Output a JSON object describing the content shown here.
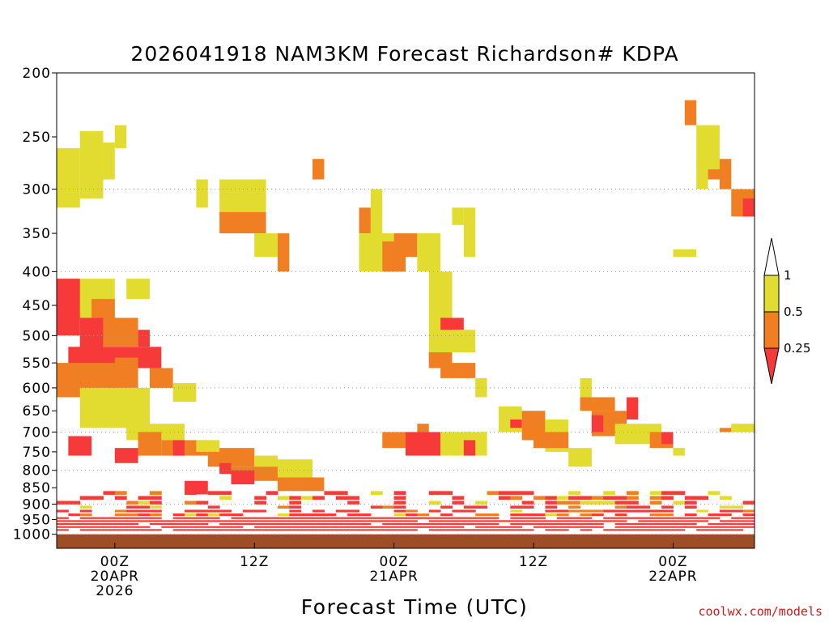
{
  "chart_data": {
    "type": "heatmap",
    "title": "2026041918 NAM3KM Forecast Richardson# KDPA",
    "xlabel": "Forecast Time (UTC)",
    "ylabel": "",
    "y_scale": "log-pressure",
    "ylim_hpa": [
      1000,
      200
    ],
    "y_ticks": [
      200,
      250,
      300,
      350,
      400,
      450,
      500,
      550,
      600,
      650,
      700,
      750,
      800,
      850,
      900,
      950,
      1000
    ],
    "y_gridlines": [
      300,
      400,
      500,
      600,
      700,
      800,
      900,
      1000
    ],
    "xlim_hours": [
      -5,
      55
    ],
    "x_ticks": [
      {
        "hour": 0,
        "lines": [
          "00Z",
          "20APR",
          "2026"
        ]
      },
      {
        "hour": 12,
        "lines": [
          "12Z"
        ]
      },
      {
        "hour": 24,
        "lines": [
          "00Z",
          "21APR"
        ]
      },
      {
        "hour": 36,
        "lines": [
          "12Z"
        ]
      },
      {
        "hour": 48,
        "lines": [
          "00Z",
          "22APR"
        ]
      }
    ],
    "legend": {
      "placement": "right",
      "labels": [
        "1",
        "0.5",
        "0.25"
      ],
      "bins": [
        {
          "range": "0.5 - 1",
          "color": "#e1dc2f"
        },
        {
          "range": "0.25 - 0.5",
          "color": "#ef7f22"
        },
        {
          "range": "< 0.25",
          "color": "#f63a3a"
        }
      ]
    },
    "colors": {
      "yellow": "#e1dc2f",
      "orange": "#ef7f22",
      "red": "#f63a3a",
      "ground": "#9e4e27",
      "grid": "#999999"
    },
    "cells": [
      {
        "t0": -5,
        "t1": -3,
        "p0": 260,
        "p1": 320,
        "c": "yellow"
      },
      {
        "t0": -3,
        "t1": -1,
        "p0": 245,
        "p1": 310,
        "c": "yellow"
      },
      {
        "t0": -1,
        "t1": 0,
        "p0": 255,
        "p1": 290,
        "c": "yellow"
      },
      {
        "t0": 0,
        "t1": 1,
        "p0": 240,
        "p1": 260,
        "c": "yellow"
      },
      {
        "t0": -5,
        "t1": 0,
        "p0": 410,
        "p1": 470,
        "c": "yellow"
      },
      {
        "t0": 1,
        "t1": 3,
        "p0": 410,
        "p1": 440,
        "c": "yellow"
      },
      {
        "t0": -5,
        "t1": -3,
        "p0": 410,
        "p1": 500,
        "c": "red"
      },
      {
        "t0": -3,
        "t1": -1,
        "p0": 470,
        "p1": 530,
        "c": "red"
      },
      {
        "t0": -4,
        "t1": 4,
        "p0": 520,
        "p1": 560,
        "c": "red"
      },
      {
        "t0": 2,
        "t1": 3,
        "p0": 490,
        "p1": 520,
        "c": "red"
      },
      {
        "t0": -5,
        "t1": 1,
        "p0": 560,
        "p1": 620,
        "c": "orange"
      },
      {
        "t0": -2,
        "t1": 0,
        "p0": 440,
        "p1": 470,
        "c": "orange"
      },
      {
        "t0": -1,
        "t1": 2,
        "p0": 470,
        "p1": 520,
        "c": "orange"
      },
      {
        "t0": -5,
        "t1": 0,
        "p0": 550,
        "p1": 580,
        "c": "orange"
      },
      {
        "t0": 0,
        "t1": 2,
        "p0": 540,
        "p1": 600,
        "c": "orange"
      },
      {
        "t0": 3,
        "t1": 5,
        "p0": 560,
        "p1": 600,
        "c": "orange"
      },
      {
        "t0": -3,
        "t1": 3,
        "p0": 600,
        "p1": 690,
        "c": "yellow"
      },
      {
        "t0": 1,
        "t1": 3,
        "p0": 640,
        "p1": 720,
        "c": "yellow"
      },
      {
        "t0": 3,
        "t1": 6,
        "p0": 680,
        "p1": 720,
        "c": "yellow"
      },
      {
        "t0": 5,
        "t1": 7,
        "p0": 590,
        "p1": 630,
        "c": "yellow"
      },
      {
        "t0": 2,
        "t1": 4,
        "p0": 700,
        "p1": 760,
        "c": "orange"
      },
      {
        "t0": 4,
        "t1": 8,
        "p0": 720,
        "p1": 760,
        "c": "orange"
      },
      {
        "t0": 8,
        "t1": 12,
        "p0": 740,
        "p1": 790,
        "c": "orange"
      },
      {
        "t0": 7,
        "t1": 9,
        "p0": 720,
        "p1": 750,
        "c": "yellow"
      },
      {
        "t0": 12,
        "t1": 14,
        "p0": 760,
        "p1": 800,
        "c": "yellow"
      },
      {
        "t0": 14,
        "t1": 17,
        "p0": 770,
        "p1": 830,
        "c": "yellow"
      },
      {
        "t0": 10,
        "t1": 14,
        "p0": 790,
        "p1": 830,
        "c": "orange"
      },
      {
        "t0": 14,
        "t1": 18,
        "p0": 820,
        "p1": 860,
        "c": "orange"
      },
      {
        "t0": -4,
        "t1": -2,
        "p0": 710,
        "p1": 760,
        "c": "red"
      },
      {
        "t0": 0,
        "t1": 2,
        "p0": 740,
        "p1": 780,
        "c": "red"
      },
      {
        "t0": 5,
        "t1": 6,
        "p0": 720,
        "p1": 760,
        "c": "red"
      },
      {
        "t0": 9,
        "t1": 10,
        "p0": 780,
        "p1": 810,
        "c": "red"
      },
      {
        "t0": 6,
        "t1": 8,
        "p0": 830,
        "p1": 870,
        "c": "red"
      },
      {
        "t0": 10,
        "t1": 12,
        "p0": 800,
        "p1": 840,
        "c": "red"
      },
      {
        "t0": 9,
        "t1": 13,
        "p0": 290,
        "p1": 330,
        "c": "yellow"
      },
      {
        "t0": 9,
        "t1": 13,
        "p0": 325,
        "p1": 350,
        "c": "orange"
      },
      {
        "t0": 12,
        "t1": 14,
        "p0": 350,
        "p1": 380,
        "c": "yellow"
      },
      {
        "t0": 14,
        "t1": 15,
        "p0": 350,
        "p1": 400,
        "c": "orange"
      },
      {
        "t0": 7,
        "t1": 8,
        "p0": 290,
        "p1": 320,
        "c": "yellow"
      },
      {
        "t0": 17,
        "t1": 18,
        "p0": 270,
        "p1": 290,
        "c": "orange"
      },
      {
        "t0": 21,
        "t1": 22,
        "p0": 320,
        "p1": 350,
        "c": "orange"
      },
      {
        "t0": 22,
        "t1": 23,
        "p0": 300,
        "p1": 360,
        "c": "yellow"
      },
      {
        "t0": 21,
        "t1": 24,
        "p0": 350,
        "p1": 400,
        "c": "yellow"
      },
      {
        "t0": 23,
        "t1": 25,
        "p0": 360,
        "p1": 400,
        "c": "orange"
      },
      {
        "t0": 24,
        "t1": 26,
        "p0": 350,
        "p1": 380,
        "c": "orange"
      },
      {
        "t0": 26,
        "t1": 28,
        "p0": 350,
        "p1": 400,
        "c": "yellow"
      },
      {
        "t0": 30,
        "t1": 31,
        "p0": 320,
        "p1": 380,
        "c": "yellow"
      },
      {
        "t0": 29,
        "t1": 30,
        "p0": 320,
        "p1": 340,
        "c": "yellow"
      },
      {
        "t0": 27,
        "t1": 29,
        "p0": 400,
        "p1": 550,
        "c": "yellow"
      },
      {
        "t0": 27,
        "t1": 29,
        "p0": 530,
        "p1": 560,
        "c": "orange"
      },
      {
        "t0": 28,
        "t1": 30,
        "p0": 470,
        "p1": 490,
        "c": "red"
      },
      {
        "t0": 28,
        "t1": 31,
        "p0": 550,
        "p1": 580,
        "c": "orange"
      },
      {
        "t0": 29,
        "t1": 31,
        "p0": 490,
        "p1": 530,
        "c": "yellow"
      },
      {
        "t0": 31,
        "t1": 32,
        "p0": 580,
        "p1": 620,
        "c": "yellow"
      },
      {
        "t0": 26,
        "t1": 27,
        "p0": 680,
        "p1": 740,
        "c": "orange"
      },
      {
        "t0": 25,
        "t1": 28,
        "p0": 700,
        "p1": 760,
        "c": "red"
      },
      {
        "t0": 23,
        "t1": 25,
        "p0": 700,
        "p1": 740,
        "c": "orange"
      },
      {
        "t0": 28,
        "t1": 32,
        "p0": 700,
        "p1": 760,
        "c": "yellow"
      },
      {
        "t0": 30,
        "t1": 31,
        "p0": 720,
        "p1": 760,
        "c": "red"
      },
      {
        "t0": 33,
        "t1": 35,
        "p0": 640,
        "p1": 700,
        "c": "yellow"
      },
      {
        "t0": 35,
        "t1": 37,
        "p0": 650,
        "p1": 720,
        "c": "orange"
      },
      {
        "t0": 37,
        "t1": 39,
        "p0": 670,
        "p1": 750,
        "c": "yellow"
      },
      {
        "t0": 36,
        "t1": 39,
        "p0": 700,
        "p1": 740,
        "c": "orange"
      },
      {
        "t0": 34,
        "t1": 35,
        "p0": 670,
        "p1": 690,
        "c": "red"
      },
      {
        "t0": 39,
        "t1": 41,
        "p0": 740,
        "p1": 790,
        "c": "yellow"
      },
      {
        "t0": 40,
        "t1": 43,
        "p0": 620,
        "p1": 650,
        "c": "orange"
      },
      {
        "t0": 41,
        "t1": 44,
        "p0": 650,
        "p1": 710,
        "c": "orange"
      },
      {
        "t0": 40,
        "t1": 41,
        "p0": 580,
        "p1": 620,
        "c": "yellow"
      },
      {
        "t0": 41,
        "t1": 42,
        "p0": 660,
        "p1": 700,
        "c": "red"
      },
      {
        "t0": 43,
        "t1": 47,
        "p0": 680,
        "p1": 730,
        "c": "yellow"
      },
      {
        "t0": 44,
        "t1": 45,
        "p0": 620,
        "p1": 670,
        "c": "red"
      },
      {
        "t0": 46,
        "t1": 48,
        "p0": 700,
        "p1": 740,
        "c": "orange"
      },
      {
        "t0": 47,
        "t1": 48,
        "p0": 700,
        "p1": 730,
        "c": "red"
      },
      {
        "t0": 48,
        "t1": 49,
        "p0": 740,
        "p1": 760,
        "c": "yellow"
      },
      {
        "t0": 48,
        "t1": 50,
        "p0": 370,
        "p1": 380,
        "c": "yellow"
      },
      {
        "t0": 50,
        "t1": 51,
        "p0": 270,
        "p1": 300,
        "c": "yellow"
      },
      {
        "t0": 51,
        "t1": 53,
        "p0": 270,
        "p1": 290,
        "c": "orange"
      },
      {
        "t0": 52,
        "t1": 53,
        "p0": 290,
        "p1": 300,
        "c": "orange"
      },
      {
        "t0": 53,
        "t1": 55,
        "p0": 300,
        "p1": 330,
        "c": "orange"
      },
      {
        "t0": 54,
        "t1": 55,
        "p0": 310,
        "p1": 330,
        "c": "red"
      },
      {
        "t0": 50,
        "t1": 52,
        "p0": 240,
        "p1": 280,
        "c": "yellow"
      },
      {
        "t0": 49,
        "t1": 50,
        "p0": 220,
        "p1": 240,
        "c": "orange"
      },
      {
        "t0": 53,
        "t1": 55,
        "p0": 680,
        "p1": 700,
        "c": "yellow"
      },
      {
        "t0": 52,
        "t1": 53,
        "p0": 690,
        "p1": 700,
        "c": "orange"
      }
    ],
    "boundary_layer": {
      "top_hpa_min": 870,
      "top_hpa_max": 960,
      "ground_hpa": 1000
    }
  },
  "credit": "coolwx.com/models"
}
